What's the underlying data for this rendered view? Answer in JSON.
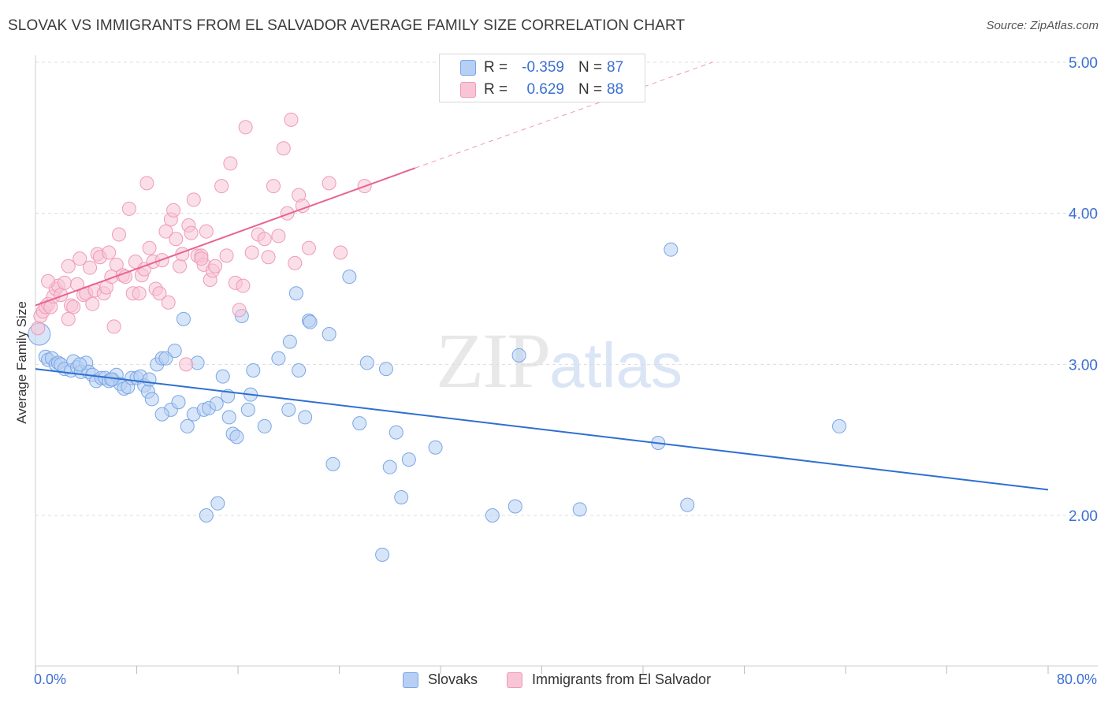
{
  "header": {
    "title": "SLOVAK VS IMMIGRANTS FROM EL SALVADOR AVERAGE FAMILY SIZE CORRELATION CHART",
    "source": "Source: ZipAtlas.com"
  },
  "watermark": {
    "zip": "ZIP",
    "atlas": "atlas"
  },
  "legend_top": {
    "rows": [
      {
        "r_label": "R =",
        "r_value": "-0.359",
        "n_label": "N =",
        "n_value": "87"
      },
      {
        "r_label": "R =",
        "r_value": "0.629",
        "n_label": "N =",
        "n_value": "88"
      }
    ]
  },
  "legend_bottom": {
    "items": [
      {
        "label": "Slovaks"
      },
      {
        "label": "Immigrants from El Salvador"
      }
    ]
  },
  "axes": {
    "x_min_label": "0.0%",
    "x_max_label": "80.0%",
    "y_label": "Average Family Size"
  },
  "colors": {
    "blue_fill": "#b6cff3",
    "blue_stroke": "#7aa6e6",
    "blue_line": "#2f6fd1",
    "pink_fill": "#f7c5d6",
    "pink_stroke": "#ef9ab8",
    "pink_line": "#e8648e",
    "tick_text": "#3b6fd4",
    "grid": "#dcdcdc"
  },
  "chart_data": {
    "type": "scatter",
    "xlim": [
      0,
      80
    ],
    "ylim": [
      1.0,
      5.1
    ],
    "y_ticks": [
      2.0,
      3.0,
      4.0,
      5.0
    ],
    "y_tick_labels": [
      "2.00",
      "3.00",
      "4.00",
      "5.00"
    ],
    "series": [
      {
        "name": "Slovaks",
        "r": -0.359,
        "n": 87,
        "trend": {
          "x0": 0,
          "y0": 2.97,
          "x1": 80,
          "y1": 2.17
        },
        "points": [
          [
            0.3,
            3.2
          ],
          [
            0.8,
            3.05
          ],
          [
            1.0,
            3.03
          ],
          [
            1.3,
            3.04
          ],
          [
            1.6,
            3.0
          ],
          [
            1.8,
            3.01
          ],
          [
            2.0,
            3.0
          ],
          [
            2.3,
            2.97
          ],
          [
            2.8,
            2.96
          ],
          [
            3.0,
            3.02
          ],
          [
            3.3,
            2.98
          ],
          [
            3.6,
            2.95
          ],
          [
            4.0,
            3.01
          ],
          [
            4.2,
            2.95
          ],
          [
            4.5,
            2.93
          ],
          [
            4.8,
            2.89
          ],
          [
            5.2,
            2.91
          ],
          [
            5.5,
            2.91
          ],
          [
            5.8,
            2.89
          ],
          [
            6.1,
            2.9
          ],
          [
            6.4,
            2.93
          ],
          [
            6.7,
            2.87
          ],
          [
            7.0,
            2.84
          ],
          [
            7.3,
            2.85
          ],
          [
            7.6,
            2.91
          ],
          [
            8.0,
            2.91
          ],
          [
            8.3,
            2.92
          ],
          [
            8.6,
            2.86
          ],
          [
            8.9,
            2.82
          ],
          [
            9.2,
            2.77
          ],
          [
            9.6,
            3.0
          ],
          [
            10.0,
            3.04
          ],
          [
            10.3,
            3.04
          ],
          [
            10.7,
            2.7
          ],
          [
            11.0,
            3.09
          ],
          [
            11.3,
            2.75
          ],
          [
            10.0,
            2.67
          ],
          [
            11.7,
            3.3
          ],
          [
            12.0,
            2.59
          ],
          [
            12.5,
            2.67
          ],
          [
            12.8,
            3.01
          ],
          [
            13.3,
            2.7
          ],
          [
            13.7,
            2.71
          ],
          [
            14.3,
            2.74
          ],
          [
            14.8,
            2.92
          ],
          [
            15.2,
            2.79
          ],
          [
            15.3,
            2.65
          ],
          [
            15.6,
            2.54
          ],
          [
            15.9,
            2.52
          ],
          [
            16.3,
            3.32
          ],
          [
            16.8,
            2.7
          ],
          [
            17.0,
            2.8
          ],
          [
            17.2,
            2.96
          ],
          [
            18.1,
            2.59
          ],
          [
            19.2,
            3.04
          ],
          [
            20.0,
            2.7
          ],
          [
            20.1,
            3.15
          ],
          [
            20.6,
            3.47
          ],
          [
            20.8,
            2.96
          ],
          [
            21.3,
            2.65
          ],
          [
            21.6,
            3.29
          ],
          [
            21.7,
            3.28
          ],
          [
            23.2,
            3.2
          ],
          [
            23.5,
            2.34
          ],
          [
            24.8,
            3.58
          ],
          [
            25.6,
            2.61
          ],
          [
            26.2,
            3.01
          ],
          [
            27.4,
            1.74
          ],
          [
            27.7,
            2.97
          ],
          [
            28.0,
            2.32
          ],
          [
            28.5,
            2.55
          ],
          [
            28.9,
            2.12
          ],
          [
            29.5,
            2.37
          ],
          [
            31.6,
            2.45
          ],
          [
            13.5,
            2.0
          ],
          [
            14.4,
            2.08
          ],
          [
            36.1,
            2.0
          ],
          [
            37.9,
            2.06
          ],
          [
            38.2,
            3.06
          ],
          [
            43.0,
            2.04
          ],
          [
            49.2,
            2.48
          ],
          [
            50.2,
            3.76
          ],
          [
            51.5,
            2.07
          ],
          [
            63.5,
            2.59
          ],
          [
            3.5,
            3.0
          ],
          [
            6.0,
            2.9
          ],
          [
            9.0,
            2.9
          ]
        ]
      },
      {
        "name": "Immigrants from El Salvador",
        "r": 0.629,
        "n": 88,
        "trend": {
          "x0": 0,
          "y0": 3.39,
          "x1": 30,
          "y1": 4.3
        },
        "trend_dashed": {
          "x0": 30,
          "y0": 4.3,
          "x1": 53.5,
          "y1": 5.0
        },
        "points": [
          [
            0.2,
            3.24
          ],
          [
            0.4,
            3.32
          ],
          [
            0.6,
            3.35
          ],
          [
            0.8,
            3.38
          ],
          [
            1.0,
            3.4
          ],
          [
            1.2,
            3.38
          ],
          [
            1.4,
            3.45
          ],
          [
            1.6,
            3.5
          ],
          [
            1.8,
            3.52
          ],
          [
            2.0,
            3.46
          ],
          [
            2.3,
            3.54
          ],
          [
            2.6,
            3.65
          ],
          [
            2.8,
            3.39
          ],
          [
            3.0,
            3.38
          ],
          [
            3.3,
            3.53
          ],
          [
            3.5,
            3.7
          ],
          [
            3.8,
            3.46
          ],
          [
            4.0,
            3.47
          ],
          [
            4.3,
            3.64
          ],
          [
            4.5,
            3.4
          ],
          [
            4.7,
            3.49
          ],
          [
            4.9,
            3.73
          ],
          [
            5.1,
            3.71
          ],
          [
            5.4,
            3.47
          ],
          [
            5.6,
            3.51
          ],
          [
            5.8,
            3.74
          ],
          [
            6.0,
            3.58
          ],
          [
            6.2,
            3.25
          ],
          [
            6.4,
            3.66
          ],
          [
            6.6,
            3.86
          ],
          [
            6.9,
            3.59
          ],
          [
            7.1,
            3.58
          ],
          [
            7.4,
            4.03
          ],
          [
            7.7,
            3.47
          ],
          [
            7.9,
            3.68
          ],
          [
            8.2,
            3.47
          ],
          [
            8.4,
            3.59
          ],
          [
            8.6,
            3.63
          ],
          [
            8.8,
            4.2
          ],
          [
            9.0,
            3.77
          ],
          [
            9.3,
            3.68
          ],
          [
            9.5,
            3.5
          ],
          [
            9.8,
            3.47
          ],
          [
            10.0,
            3.69
          ],
          [
            10.3,
            3.88
          ],
          [
            10.5,
            3.41
          ],
          [
            10.7,
            3.96
          ],
          [
            10.9,
            4.02
          ],
          [
            11.1,
            3.83
          ],
          [
            11.4,
            3.65
          ],
          [
            11.6,
            3.73
          ],
          [
            11.9,
            3.0
          ],
          [
            12.1,
            3.92
          ],
          [
            12.3,
            3.87
          ],
          [
            12.5,
            4.09
          ],
          [
            12.8,
            3.72
          ],
          [
            13.1,
            3.72
          ],
          [
            13.3,
            3.66
          ],
          [
            13.5,
            3.88
          ],
          [
            13.8,
            3.56
          ],
          [
            14.0,
            3.62
          ],
          [
            14.2,
            3.65
          ],
          [
            14.7,
            4.18
          ],
          [
            15.1,
            3.72
          ],
          [
            15.4,
            4.33
          ],
          [
            15.8,
            3.54
          ],
          [
            16.1,
            3.36
          ],
          [
            16.4,
            3.52
          ],
          [
            16.6,
            4.57
          ],
          [
            17.1,
            3.74
          ],
          [
            17.6,
            3.86
          ],
          [
            18.1,
            3.83
          ],
          [
            18.4,
            3.71
          ],
          [
            18.8,
            4.18
          ],
          [
            19.2,
            3.85
          ],
          [
            19.6,
            4.43
          ],
          [
            19.9,
            4.0
          ],
          [
            20.2,
            4.62
          ],
          [
            20.5,
            3.67
          ],
          [
            20.8,
            4.12
          ],
          [
            21.1,
            4.05
          ],
          [
            21.6,
            3.77
          ],
          [
            23.2,
            4.2
          ],
          [
            24.1,
            3.74
          ],
          [
            26.0,
            4.18
          ],
          [
            1.0,
            3.55
          ],
          [
            2.6,
            3.3
          ],
          [
            13.1,
            3.7
          ]
        ]
      }
    ]
  }
}
